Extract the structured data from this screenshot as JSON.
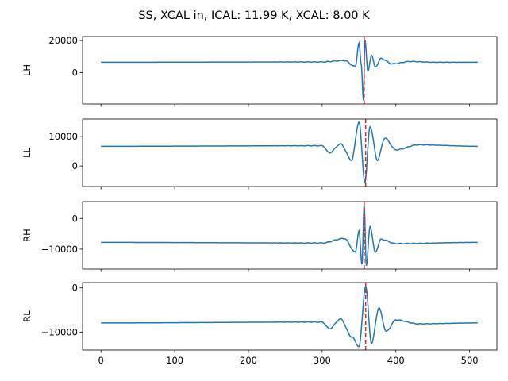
{
  "chart_data": {
    "type": "line",
    "title": "SS, XCAL in, ICAL: 11.99 K, XCAL: 8.00 K",
    "shared_x": {
      "xlim": [
        -25,
        537
      ],
      "ticks": [
        0,
        100,
        200,
        300,
        400,
        500
      ],
      "tick_labels": [
        "0",
        "100",
        "200",
        "300",
        "400",
        "500"
      ]
    },
    "line_color": "#1f77b4",
    "marker_color": "#d62728",
    "panels": [
      {
        "ylabel": "LH",
        "ylim": [
          -19500,
          22500
        ],
        "yticks": [
          0,
          20000
        ],
        "ytick_labels": [
          "0",
          "20000"
        ],
        "baseline": 6500,
        "peak_x": 357,
        "marker_x": 357,
        "profile": "sharp",
        "points": [
          [
            0,
            6500
          ],
          [
            300,
            6700
          ],
          [
            330,
            7600
          ],
          [
            345,
            3800
          ],
          [
            350,
            18500
          ],
          [
            353,
            5000
          ],
          [
            356,
            -17000
          ],
          [
            358,
            20500
          ],
          [
            362,
            800
          ],
          [
            367,
            11000
          ],
          [
            372,
            3500
          ],
          [
            380,
            8800
          ],
          [
            395,
            5500
          ],
          [
            420,
            7000
          ],
          [
            450,
            6500
          ],
          [
            511,
            6500
          ]
        ]
      },
      {
        "ylabel": "LL",
        "ylim": [
          -7000,
          16000
        ],
        "yticks": [
          0,
          10000
        ],
        "ytick_labels": [
          "0",
          "10000"
        ],
        "baseline": 6700,
        "peak_x": 359,
        "marker_x": 359,
        "profile": "broad",
        "points": [
          [
            0,
            6700
          ],
          [
            300,
            6900
          ],
          [
            310,
            4500
          ],
          [
            325,
            7500
          ],
          [
            340,
            2000
          ],
          [
            350,
            15000
          ],
          [
            358,
            -5500
          ],
          [
            365,
            13500
          ],
          [
            375,
            2000
          ],
          [
            385,
            9500
          ],
          [
            400,
            5500
          ],
          [
            430,
            7200
          ],
          [
            511,
            6700
          ]
        ]
      },
      {
        "ylabel": "RH",
        "ylim": [
          -16500,
          5500
        ],
        "yticks": [
          -10000,
          0
        ],
        "ytick_labels": [
          "−10000",
          "0"
        ],
        "baseline": -7800,
        "peak_x": 357,
        "marker_x": 357,
        "profile": "sharp",
        "points": [
          [
            0,
            -7800
          ],
          [
            300,
            -8000
          ],
          [
            330,
            -6500
          ],
          [
            345,
            -11000
          ],
          [
            350,
            -4000
          ],
          [
            354,
            -15000
          ],
          [
            357,
            4500
          ],
          [
            360,
            -15500
          ],
          [
            365,
            -2500
          ],
          [
            372,
            -11000
          ],
          [
            380,
            -6800
          ],
          [
            400,
            -8200
          ],
          [
            511,
            -7800
          ]
        ]
      },
      {
        "ylabel": "RL",
        "ylim": [
          -14000,
          1200
        ],
        "yticks": [
          -10000,
          0
        ],
        "ytick_labels": [
          "−10000",
          "0"
        ],
        "baseline": -7900,
        "peak_x": 359,
        "marker_x": 359,
        "profile": "broad",
        "points": [
          [
            0,
            -7900
          ],
          [
            300,
            -7700
          ],
          [
            310,
            -9200
          ],
          [
            325,
            -7000
          ],
          [
            340,
            -11000
          ],
          [
            350,
            -13200
          ],
          [
            359,
            300
          ],
          [
            367,
            -12500
          ],
          [
            377,
            -4500
          ],
          [
            387,
            -9800
          ],
          [
            400,
            -7200
          ],
          [
            430,
            -8100
          ],
          [
            511,
            -7900
          ]
        ]
      }
    ]
  }
}
